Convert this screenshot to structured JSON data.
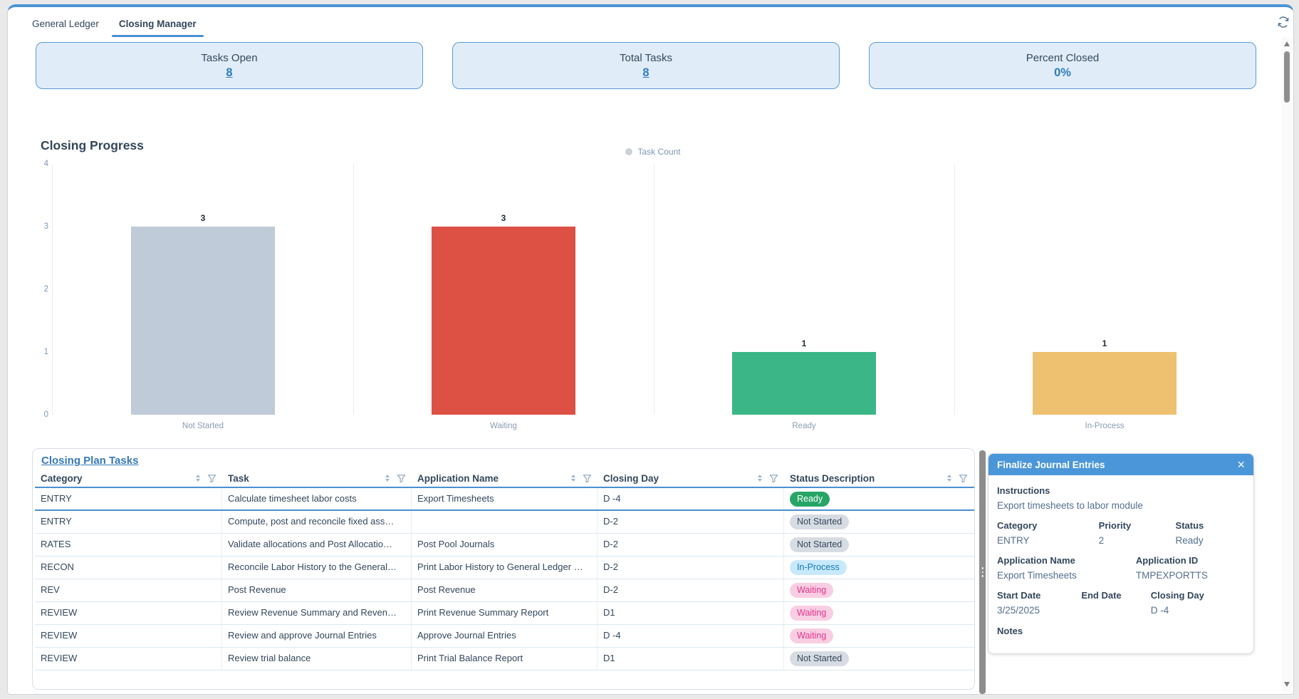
{
  "tabs": [
    {
      "label": "General Ledger"
    },
    {
      "label": "Closing Manager"
    }
  ],
  "active_tab": "Closing Manager",
  "summary_cards": [
    {
      "label": "Tasks Open",
      "value": "8",
      "link": true
    },
    {
      "label": "Total Tasks",
      "value": "8",
      "link": true
    },
    {
      "label": "Percent Closed",
      "value": "0%",
      "link": false
    }
  ],
  "chart_data": {
    "type": "bar",
    "title": "Closing Progress",
    "legend_label": "Task Count",
    "legend_position": "top-center",
    "categories": [
      "Not Started",
      "Waiting",
      "Ready",
      "In-Process"
    ],
    "values": [
      3,
      3,
      1,
      1
    ],
    "colors": [
      "#c0cbd9",
      "#dd5145",
      "#3bb687",
      "#eec171"
    ],
    "xlabel": "",
    "ylabel": "",
    "ylim": [
      0,
      4
    ],
    "y_ticks": [
      "4",
      "3",
      "2",
      "1",
      "0"
    ],
    "grid": "vertical-separators"
  },
  "table": {
    "title": "Closing Plan Tasks",
    "columns": [
      "Category",
      "Task",
      "Application Name",
      "Closing Day",
      "Status Description"
    ],
    "rows": [
      {
        "category": "ENTRY",
        "task": "Calculate timesheet labor costs",
        "application": "Export Timesheets",
        "closing_day": "D -4",
        "status": "Ready",
        "status_type": "ready",
        "selected": true
      },
      {
        "category": "ENTRY",
        "task": "Compute, post and reconcile fixed ass…",
        "application": "",
        "closing_day": "D-2",
        "status": "Not Started",
        "status_type": "not-started",
        "selected": false
      },
      {
        "category": "RATES",
        "task": "Validate allocations and Post Allocatio…",
        "application": "Post Pool Journals",
        "closing_day": "D-2",
        "status": "Not Started",
        "status_type": "not-started",
        "selected": false
      },
      {
        "category": "RECON",
        "task": "Reconcile Labor History to the General…",
        "application": "Print Labor History to General Ledger …",
        "closing_day": "D-2",
        "status": "In-Process",
        "status_type": "in-process",
        "selected": false
      },
      {
        "category": "REV",
        "task": "Post Revenue",
        "application": "Post Revenue",
        "closing_day": "D-2",
        "status": "Waiting",
        "status_type": "waiting",
        "selected": false
      },
      {
        "category": "REVIEW",
        "task": "Review Revenue Summary and Reven…",
        "application": "Print Revenue Summary Report",
        "closing_day": "D1",
        "status": "Waiting",
        "status_type": "waiting",
        "selected": false
      },
      {
        "category": "REVIEW",
        "task": "Review and approve Journal Entries",
        "application": "Approve Journal Entries",
        "closing_day": "D -4",
        "status": "Waiting",
        "status_type": "waiting",
        "selected": false
      },
      {
        "category": "REVIEW",
        "task": "Review trial balance",
        "application": "Print Trial Balance Report",
        "closing_day": "D1",
        "status": "Not Started",
        "status_type": "not-started",
        "selected": false
      }
    ]
  },
  "panel": {
    "title": "Finalize Journal Entries",
    "instructions_label": "Instructions",
    "instructions": "Export timesheets to labor module",
    "category_label": "Category",
    "category": "ENTRY",
    "priority_label": "Priority",
    "priority": "2",
    "status_label": "Status",
    "status": "Ready",
    "application_name_label": "Application Name",
    "application_name": "Export Timesheets",
    "application_id_label": "Application ID",
    "application_id": "TMPEXPORTTS",
    "start_date_label": "Start Date",
    "start_date": "3/25/2025",
    "end_date_label": "End Date",
    "end_date": "",
    "closing_day_label": "Closing Day",
    "closing_day": "D -4",
    "notes_label": "Notes"
  },
  "colors": {
    "accent_blue": "#4a90d2",
    "card_bg": "#e0edf9",
    "card_border": "#5b9bd5",
    "pill_ready_bg": "#27a567",
    "pill_not_started_bg": "#d7dce3",
    "pill_in_process_bg": "#c7e9fb",
    "pill_in_process_text": "#1178b5",
    "pill_waiting_bg": "#f9cde2",
    "pill_waiting_text": "#e0368e"
  }
}
